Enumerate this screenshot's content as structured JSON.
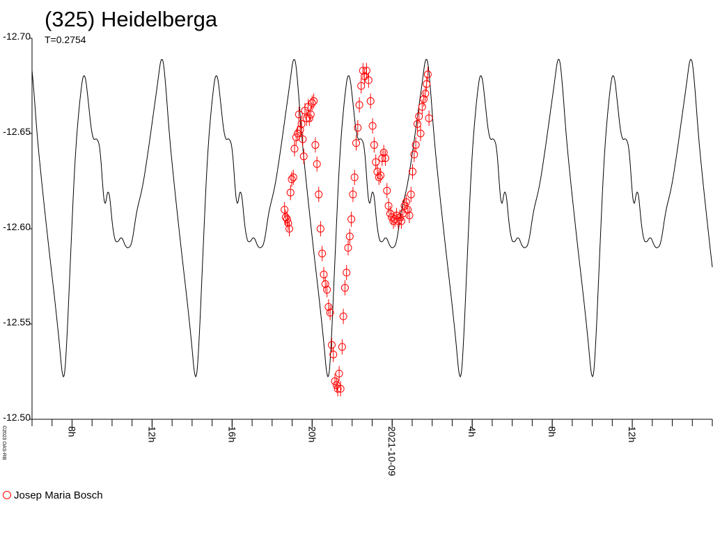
{
  "header": {
    "title": "(325) Heidelberga",
    "period_label": "T=0.2754"
  },
  "footer": {
    "copyright": "©2023 OAS-RB",
    "legend_observer": "Josep Maria Bosch"
  },
  "colors": {
    "model_curve": "#000000",
    "observations": "#ff0000"
  },
  "chart_data": {
    "type": "line",
    "title": "(325) Heidelberga",
    "subtitle": "T=0.2754",
    "xlabel": "",
    "ylabel": "",
    "x_unit": "hours of day, starting 2021-10-08 06:00",
    "xlim": [
      6.0,
      40.0
    ],
    "ylim": [
      -12.7,
      -12.5
    ],
    "y_reversed": true,
    "y_ticks": [
      -12.7,
      -12.65,
      -12.6,
      -12.55,
      -12.5
    ],
    "y_tick_labels": [
      "-12.70",
      "-12.65",
      "-12.60",
      "-12.55",
      "-12.50"
    ],
    "x_tick_labels": [
      {
        "x": 8,
        "label": "8h"
      },
      {
        "x": 12,
        "label": "12h"
      },
      {
        "x": 16,
        "label": "16h"
      },
      {
        "x": 20,
        "label": "20h"
      },
      {
        "x": 24,
        "label": "2021-10-09"
      },
      {
        "x": 28,
        "label": "4h"
      },
      {
        "x": 32,
        "label": "8h"
      },
      {
        "x": 36,
        "label": "12h"
      }
    ],
    "grid": false,
    "legend": "bottom-left",
    "series": [
      {
        "name": "model",
        "kind": "line",
        "period_h": 6.61,
        "phase_origin_h": 17.48,
        "shape_phase": [
          0.0,
          0.02,
          0.05,
          0.1,
          0.14,
          0.18,
          0.22,
          0.245,
          0.27,
          0.3,
          0.34,
          0.39,
          0.44,
          0.48,
          0.5,
          0.52,
          0.545,
          0.57,
          0.59,
          0.63,
          0.66,
          0.69,
          0.72,
          0.76,
          0.785,
          0.81,
          0.84,
          0.86,
          0.88,
          0.91,
          0.94,
          0.97,
          1.0
        ],
        "shape_mag": [
          -12.59,
          -12.592,
          -12.608,
          -12.622,
          -12.64,
          -12.66,
          -12.68,
          -12.694,
          -12.68,
          -12.65,
          -12.622,
          -12.59,
          -12.56,
          -12.533,
          -12.515,
          -12.53,
          -12.57,
          -12.61,
          -12.64,
          -12.672,
          -12.685,
          -12.666,
          -12.646,
          -12.648,
          -12.64,
          -12.605,
          -12.626,
          -12.61,
          -12.595,
          -12.592,
          -12.597,
          -12.59,
          -12.59
        ]
      },
      {
        "name": "Josep Maria Bosch",
        "kind": "scatter",
        "error_bars": true,
        "points": [
          {
            "x": 18.62,
            "y": -12.61
          },
          {
            "x": 18.68,
            "y": -12.606
          },
          {
            "x": 18.75,
            "y": -12.605
          },
          {
            "x": 18.8,
            "y": -12.603
          },
          {
            "x": 18.86,
            "y": -12.6
          },
          {
            "x": 18.92,
            "y": -12.619
          },
          {
            "x": 18.98,
            "y": -12.626
          },
          {
            "x": 19.06,
            "y": -12.627
          },
          {
            "x": 19.12,
            "y": -12.642
          },
          {
            "x": 19.2,
            "y": -12.648
          },
          {
            "x": 19.28,
            "y": -12.65
          },
          {
            "x": 19.34,
            "y": -12.66
          },
          {
            "x": 19.4,
            "y": -12.652
          },
          {
            "x": 19.47,
            "y": -12.655
          },
          {
            "x": 19.53,
            "y": -12.647
          },
          {
            "x": 19.58,
            "y": -12.638
          },
          {
            "x": 19.64,
            "y": -12.662
          },
          {
            "x": 19.72,
            "y": -12.658
          },
          {
            "x": 19.8,
            "y": -12.664
          },
          {
            "x": 19.86,
            "y": -12.658
          },
          {
            "x": 19.93,
            "y": -12.66
          },
          {
            "x": 20.0,
            "y": -12.666
          },
          {
            "x": 20.08,
            "y": -12.667
          },
          {
            "x": 20.16,
            "y": -12.644
          },
          {
            "x": 20.24,
            "y": -12.634
          },
          {
            "x": 20.33,
            "y": -12.618
          },
          {
            "x": 20.42,
            "y": -12.6
          },
          {
            "x": 20.5,
            "y": -12.587
          },
          {
            "x": 20.58,
            "y": -12.576
          },
          {
            "x": 20.66,
            "y": -12.571
          },
          {
            "x": 20.74,
            "y": -12.568
          },
          {
            "x": 20.82,
            "y": -12.559
          },
          {
            "x": 20.9,
            "y": -12.556
          },
          {
            "x": 20.98,
            "y": -12.539
          },
          {
            "x": 21.06,
            "y": -12.534
          },
          {
            "x": 21.14,
            "y": -12.52
          },
          {
            "x": 21.22,
            "y": -12.518
          },
          {
            "x": 21.28,
            "y": -12.516
          },
          {
            "x": 21.35,
            "y": -12.524
          },
          {
            "x": 21.42,
            "y": -12.516
          },
          {
            "x": 21.5,
            "y": -12.538
          },
          {
            "x": 21.56,
            "y": -12.554
          },
          {
            "x": 21.64,
            "y": -12.569
          },
          {
            "x": 21.72,
            "y": -12.577
          },
          {
            "x": 21.8,
            "y": -12.59
          },
          {
            "x": 21.88,
            "y": -12.596
          },
          {
            "x": 21.96,
            "y": -12.605
          },
          {
            "x": 22.04,
            "y": -12.618
          },
          {
            "x": 22.12,
            "y": -12.627
          },
          {
            "x": 22.2,
            "y": -12.645
          },
          {
            "x": 22.28,
            "y": -12.653
          },
          {
            "x": 22.36,
            "y": -12.665
          },
          {
            "x": 22.45,
            "y": -12.675
          },
          {
            "x": 22.54,
            "y": -12.683
          },
          {
            "x": 22.62,
            "y": -12.68
          },
          {
            "x": 22.72,
            "y": -12.683
          },
          {
            "x": 22.82,
            "y": -12.678
          },
          {
            "x": 22.92,
            "y": -12.667
          },
          {
            "x": 23.02,
            "y": -12.654
          },
          {
            "x": 23.1,
            "y": -12.644
          },
          {
            "x": 23.18,
            "y": -12.635
          },
          {
            "x": 23.26,
            "y": -12.63
          },
          {
            "x": 23.34,
            "y": -12.627
          },
          {
            "x": 23.42,
            "y": -12.628
          },
          {
            "x": 23.5,
            "y": -12.637
          },
          {
            "x": 23.58,
            "y": -12.64
          },
          {
            "x": 23.66,
            "y": -12.637
          },
          {
            "x": 23.74,
            "y": -12.62
          },
          {
            "x": 23.82,
            "y": -12.612
          },
          {
            "x": 23.9,
            "y": -12.608
          },
          {
            "x": 23.98,
            "y": -12.606
          },
          {
            "x": 24.06,
            "y": -12.604
          },
          {
            "x": 24.14,
            "y": -12.605
          },
          {
            "x": 24.22,
            "y": -12.607
          },
          {
            "x": 24.3,
            "y": -12.604
          },
          {
            "x": 24.38,
            "y": -12.606
          },
          {
            "x": 24.46,
            "y": -12.604
          },
          {
            "x": 24.54,
            "y": -12.608
          },
          {
            "x": 24.62,
            "y": -12.612
          },
          {
            "x": 24.7,
            "y": -12.614
          },
          {
            "x": 24.78,
            "y": -12.61
          },
          {
            "x": 24.86,
            "y": -12.607
          },
          {
            "x": 24.94,
            "y": -12.618
          },
          {
            "x": 25.02,
            "y": -12.63
          },
          {
            "x": 25.1,
            "y": -12.639
          },
          {
            "x": 25.18,
            "y": -12.644
          },
          {
            "x": 25.26,
            "y": -12.655
          },
          {
            "x": 25.34,
            "y": -12.659
          },
          {
            "x": 25.42,
            "y": -12.65
          },
          {
            "x": 25.5,
            "y": -12.664
          },
          {
            "x": 25.58,
            "y": -12.668
          },
          {
            "x": 25.66,
            "y": -12.671
          },
          {
            "x": 25.72,
            "y": -12.676
          },
          {
            "x": 25.78,
            "y": -12.681
          },
          {
            "x": 25.84,
            "y": -12.658
          }
        ]
      }
    ]
  }
}
